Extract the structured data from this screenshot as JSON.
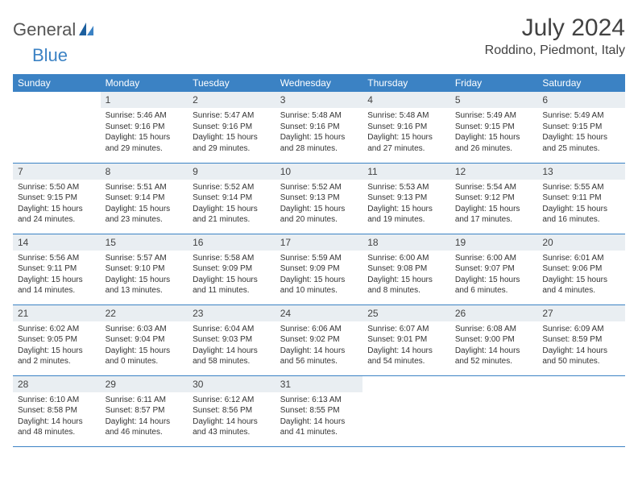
{
  "logo": {
    "text1": "General",
    "text2": "Blue"
  },
  "title": "July 2024",
  "location": "Roddino, Piedmont, Italy",
  "colors": {
    "header_bg": "#3b82c4",
    "header_text": "#ffffff",
    "daynum_bg": "#e9eef2",
    "cell_border": "#3b82c4",
    "page_bg": "#ffffff",
    "title_color": "#424242",
    "body_text": "#333333"
  },
  "typography": {
    "title_fontsize": 30,
    "location_fontsize": 16,
    "weekday_fontsize": 12,
    "daynum_fontsize": 12,
    "body_fontsize": 10
  },
  "layout": {
    "columns": 7,
    "rows": 5,
    "first_weekday": "Sunday"
  },
  "weekdays": [
    "Sunday",
    "Monday",
    "Tuesday",
    "Wednesday",
    "Thursday",
    "Friday",
    "Saturday"
  ],
  "weeks": [
    [
      {
        "n": "",
        "sr": "",
        "ss": "",
        "dl": ""
      },
      {
        "n": "1",
        "sr": "Sunrise: 5:46 AM",
        "ss": "Sunset: 9:16 PM",
        "dl": "Daylight: 15 hours and 29 minutes."
      },
      {
        "n": "2",
        "sr": "Sunrise: 5:47 AM",
        "ss": "Sunset: 9:16 PM",
        "dl": "Daylight: 15 hours and 29 minutes."
      },
      {
        "n": "3",
        "sr": "Sunrise: 5:48 AM",
        "ss": "Sunset: 9:16 PM",
        "dl": "Daylight: 15 hours and 28 minutes."
      },
      {
        "n": "4",
        "sr": "Sunrise: 5:48 AM",
        "ss": "Sunset: 9:16 PM",
        "dl": "Daylight: 15 hours and 27 minutes."
      },
      {
        "n": "5",
        "sr": "Sunrise: 5:49 AM",
        "ss": "Sunset: 9:15 PM",
        "dl": "Daylight: 15 hours and 26 minutes."
      },
      {
        "n": "6",
        "sr": "Sunrise: 5:49 AM",
        "ss": "Sunset: 9:15 PM",
        "dl": "Daylight: 15 hours and 25 minutes."
      }
    ],
    [
      {
        "n": "7",
        "sr": "Sunrise: 5:50 AM",
        "ss": "Sunset: 9:15 PM",
        "dl": "Daylight: 15 hours and 24 minutes."
      },
      {
        "n": "8",
        "sr": "Sunrise: 5:51 AM",
        "ss": "Sunset: 9:14 PM",
        "dl": "Daylight: 15 hours and 23 minutes."
      },
      {
        "n": "9",
        "sr": "Sunrise: 5:52 AM",
        "ss": "Sunset: 9:14 PM",
        "dl": "Daylight: 15 hours and 21 minutes."
      },
      {
        "n": "10",
        "sr": "Sunrise: 5:52 AM",
        "ss": "Sunset: 9:13 PM",
        "dl": "Daylight: 15 hours and 20 minutes."
      },
      {
        "n": "11",
        "sr": "Sunrise: 5:53 AM",
        "ss": "Sunset: 9:13 PM",
        "dl": "Daylight: 15 hours and 19 minutes."
      },
      {
        "n": "12",
        "sr": "Sunrise: 5:54 AM",
        "ss": "Sunset: 9:12 PM",
        "dl": "Daylight: 15 hours and 17 minutes."
      },
      {
        "n": "13",
        "sr": "Sunrise: 5:55 AM",
        "ss": "Sunset: 9:11 PM",
        "dl": "Daylight: 15 hours and 16 minutes."
      }
    ],
    [
      {
        "n": "14",
        "sr": "Sunrise: 5:56 AM",
        "ss": "Sunset: 9:11 PM",
        "dl": "Daylight: 15 hours and 14 minutes."
      },
      {
        "n": "15",
        "sr": "Sunrise: 5:57 AM",
        "ss": "Sunset: 9:10 PM",
        "dl": "Daylight: 15 hours and 13 minutes."
      },
      {
        "n": "16",
        "sr": "Sunrise: 5:58 AM",
        "ss": "Sunset: 9:09 PM",
        "dl": "Daylight: 15 hours and 11 minutes."
      },
      {
        "n": "17",
        "sr": "Sunrise: 5:59 AM",
        "ss": "Sunset: 9:09 PM",
        "dl": "Daylight: 15 hours and 10 minutes."
      },
      {
        "n": "18",
        "sr": "Sunrise: 6:00 AM",
        "ss": "Sunset: 9:08 PM",
        "dl": "Daylight: 15 hours and 8 minutes."
      },
      {
        "n": "19",
        "sr": "Sunrise: 6:00 AM",
        "ss": "Sunset: 9:07 PM",
        "dl": "Daylight: 15 hours and 6 minutes."
      },
      {
        "n": "20",
        "sr": "Sunrise: 6:01 AM",
        "ss": "Sunset: 9:06 PM",
        "dl": "Daylight: 15 hours and 4 minutes."
      }
    ],
    [
      {
        "n": "21",
        "sr": "Sunrise: 6:02 AM",
        "ss": "Sunset: 9:05 PM",
        "dl": "Daylight: 15 hours and 2 minutes."
      },
      {
        "n": "22",
        "sr": "Sunrise: 6:03 AM",
        "ss": "Sunset: 9:04 PM",
        "dl": "Daylight: 15 hours and 0 minutes."
      },
      {
        "n": "23",
        "sr": "Sunrise: 6:04 AM",
        "ss": "Sunset: 9:03 PM",
        "dl": "Daylight: 14 hours and 58 minutes."
      },
      {
        "n": "24",
        "sr": "Sunrise: 6:06 AM",
        "ss": "Sunset: 9:02 PM",
        "dl": "Daylight: 14 hours and 56 minutes."
      },
      {
        "n": "25",
        "sr": "Sunrise: 6:07 AM",
        "ss": "Sunset: 9:01 PM",
        "dl": "Daylight: 14 hours and 54 minutes."
      },
      {
        "n": "26",
        "sr": "Sunrise: 6:08 AM",
        "ss": "Sunset: 9:00 PM",
        "dl": "Daylight: 14 hours and 52 minutes."
      },
      {
        "n": "27",
        "sr": "Sunrise: 6:09 AM",
        "ss": "Sunset: 8:59 PM",
        "dl": "Daylight: 14 hours and 50 minutes."
      }
    ],
    [
      {
        "n": "28",
        "sr": "Sunrise: 6:10 AM",
        "ss": "Sunset: 8:58 PM",
        "dl": "Daylight: 14 hours and 48 minutes."
      },
      {
        "n": "29",
        "sr": "Sunrise: 6:11 AM",
        "ss": "Sunset: 8:57 PM",
        "dl": "Daylight: 14 hours and 46 minutes."
      },
      {
        "n": "30",
        "sr": "Sunrise: 6:12 AM",
        "ss": "Sunset: 8:56 PM",
        "dl": "Daylight: 14 hours and 43 minutes."
      },
      {
        "n": "31",
        "sr": "Sunrise: 6:13 AM",
        "ss": "Sunset: 8:55 PM",
        "dl": "Daylight: 14 hours and 41 minutes."
      },
      {
        "n": "",
        "sr": "",
        "ss": "",
        "dl": ""
      },
      {
        "n": "",
        "sr": "",
        "ss": "",
        "dl": ""
      },
      {
        "n": "",
        "sr": "",
        "ss": "",
        "dl": ""
      }
    ]
  ]
}
